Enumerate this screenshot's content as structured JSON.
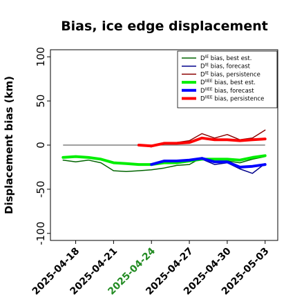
{
  "chart_data": {
    "type": "line",
    "title": "Bias, ice edge displacement",
    "ylabel": "Displacement bias (km)",
    "xlabel": "",
    "ylim": [
      -108,
      108
    ],
    "xlim": [
      "2025-04-16",
      "2025-05-04"
    ],
    "grid": false,
    "legend_position": "top-right",
    "y_ticks": [
      {
        "value": 100,
        "label": "100"
      },
      {
        "value": 50,
        "label": "50"
      },
      {
        "value": 0,
        "label": "0"
      },
      {
        "value": -50,
        "label": "-50"
      },
      {
        "value": -100,
        "label": "-100"
      }
    ],
    "x_ticks": [
      {
        "date": "2025-04-18",
        "label": "2025-04-18",
        "color": "#000000"
      },
      {
        "date": "2025-04-21",
        "label": "2025-04-21",
        "color": "#000000"
      },
      {
        "date": "2025-04-24",
        "label": "2025-04-24",
        "color": "#228b22"
      },
      {
        "date": "2025-04-27",
        "label": "2025-04-27",
        "color": "#000000"
      },
      {
        "date": "2025-04-30",
        "label": "2025-04-30",
        "color": "#000000"
      },
      {
        "date": "2025-05-03",
        "label": "2025-05-03",
        "color": "#000000"
      }
    ],
    "zero_line": {
      "value": 0,
      "from": "2025-04-17",
      "to": "2025-05-03",
      "color": "#666666"
    },
    "series": [
      {
        "name": "D^IE bias, best est.",
        "label_main": "D",
        "label_sup": "IE",
        "label_rest": " bias, best est.",
        "color": "#006400",
        "width": 1.5,
        "x": [
          "2025-04-17",
          "2025-04-18",
          "2025-04-19",
          "2025-04-20",
          "2025-04-21",
          "2025-04-22",
          "2025-04-23",
          "2025-04-24",
          "2025-04-25",
          "2025-04-26",
          "2025-04-27",
          "2025-04-28",
          "2025-04-29",
          "2025-04-30",
          "2025-05-01",
          "2025-05-02",
          "2025-05-03"
        ],
        "y": [
          -17,
          -19,
          -17,
          -20,
          -29,
          -30,
          -29,
          -28,
          -26,
          -23,
          -22,
          -14,
          -19,
          -18,
          -20,
          -16,
          -13
        ]
      },
      {
        "name": "D^IE bias, forecast",
        "label_main": "D",
        "label_sup": "IE",
        "label_rest": " bias, forecast",
        "color": "#00008b",
        "width": 1.5,
        "x": [
          "2025-04-24",
          "2025-04-25",
          "2025-04-26",
          "2025-04-27",
          "2025-04-28",
          "2025-04-29",
          "2025-04-30",
          "2025-05-01",
          "2025-05-02",
          "2025-05-03"
        ],
        "y": [
          -23,
          -19,
          -19,
          -19,
          -16,
          -22,
          -20,
          -27,
          -32,
          -21
        ]
      },
      {
        "name": "D^IE bias, persistence",
        "label_main": "D",
        "label_sup": "IE",
        "label_rest": " bias, persistence",
        "color": "#8b0000",
        "width": 1.5,
        "x": [
          "2025-04-23",
          "2025-04-24",
          "2025-04-25",
          "2025-04-26",
          "2025-04-27",
          "2025-04-28",
          "2025-04-29",
          "2025-04-30",
          "2025-05-01",
          "2025-05-02",
          "2025-05-03"
        ],
        "y": [
          0,
          -2,
          3,
          3,
          5,
          13,
          8,
          12,
          6,
          8,
          17
        ]
      },
      {
        "name": "D^IIEE bias, best est.",
        "label_main": "D",
        "label_sup": "IIEE",
        "label_rest": " bias, best est.",
        "color": "#00ee00",
        "width": 4,
        "x": [
          "2025-04-17",
          "2025-04-18",
          "2025-04-19",
          "2025-04-20",
          "2025-04-21",
          "2025-04-22",
          "2025-04-23",
          "2025-04-24",
          "2025-04-25",
          "2025-04-26",
          "2025-04-27",
          "2025-04-28",
          "2025-04-29",
          "2025-04-30",
          "2025-05-01",
          "2025-05-02",
          "2025-05-03"
        ],
        "y": [
          -14,
          -13,
          -14,
          -16,
          -20,
          -21,
          -22,
          -22,
          -20,
          -20,
          -18,
          -16,
          -16,
          -16,
          -17,
          -14,
          -12
        ]
      },
      {
        "name": "D^IIEE bias, forecast",
        "label_main": "D",
        "label_sup": "IIEE",
        "label_rest": " bias, forecast",
        "color": "#0000ff",
        "width": 4,
        "x": [
          "2025-04-24",
          "2025-04-25",
          "2025-04-26",
          "2025-04-27",
          "2025-04-28",
          "2025-04-29",
          "2025-04-30",
          "2025-05-01",
          "2025-05-02",
          "2025-05-03"
        ],
        "y": [
          -22,
          -18,
          -18,
          -17,
          -15,
          -19,
          -19,
          -25,
          -24,
          -22
        ]
      },
      {
        "name": "D^IIEE bias, persistence",
        "label_main": "D",
        "label_sup": "IIEE",
        "label_rest": " bias, persistence",
        "color": "#ff0000",
        "width": 4,
        "x": [
          "2025-04-23",
          "2025-04-24",
          "2025-04-25",
          "2025-04-26",
          "2025-04-27",
          "2025-04-28",
          "2025-04-29",
          "2025-04-30",
          "2025-05-01",
          "2025-05-02",
          "2025-05-03"
        ],
        "y": [
          0,
          -1,
          2,
          2,
          3,
          8,
          6,
          6,
          5,
          6,
          7
        ]
      }
    ]
  }
}
